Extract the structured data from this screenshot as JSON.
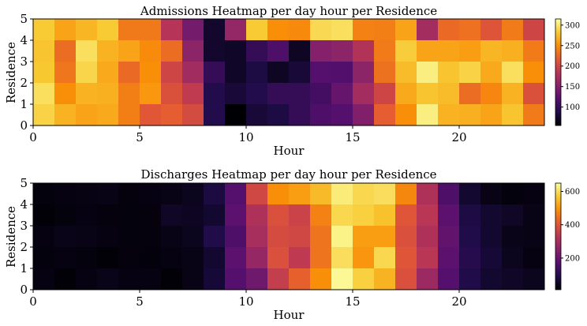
{
  "chart_data": [
    {
      "type": "heatmap",
      "title": "Admissions Heatmap per day hour per Residence",
      "xlabel": "Hour",
      "ylabel": "Residence",
      "x_range": [
        0,
        24
      ],
      "y_range": [
        0,
        5
      ],
      "x_ticks": [
        0,
        5,
        10,
        15,
        20
      ],
      "y_ticks": [
        0,
        1,
        2,
        3,
        4,
        5
      ],
      "colorbar_ticks": [
        100,
        150,
        200,
        250,
        300
      ],
      "vmin": 55,
      "vmax": 315,
      "colormap": "inferno",
      "rows_top_to_bottom": [
        [
          283,
          262,
          272,
          283,
          237,
          237,
          182,
          140,
          75,
          160,
          283,
          250,
          247,
          292,
          295,
          242,
          240,
          262,
          170,
          228,
          232,
          213,
          238,
          200
        ],
        [
          280,
          230,
          295,
          270,
          262,
          248,
          230,
          155,
          75,
          72,
          100,
          115,
          70,
          150,
          155,
          180,
          238,
          285,
          262,
          262,
          258,
          272,
          268,
          238
        ],
        [
          282,
          235,
          290,
          265,
          228,
          250,
          200,
          168,
          100,
          72,
          85,
          70,
          80,
          120,
          118,
          155,
          233,
          275,
          305,
          280,
          288,
          265,
          295,
          250
        ],
        [
          295,
          250,
          270,
          268,
          240,
          255,
          210,
          190,
          90,
          80,
          90,
          100,
          100,
          110,
          130,
          170,
          200,
          265,
          280,
          275,
          230,
          245,
          270,
          210
        ],
        [
          288,
          270,
          262,
          265,
          240,
          215,
          220,
          205,
          90,
          55,
          80,
          85,
          100,
          115,
          120,
          148,
          220,
          250,
          305,
          270,
          268,
          262,
          280,
          238
        ]
      ]
    },
    {
      "type": "heatmap",
      "title": "Discharges Heatmap per day hour per Residence",
      "xlabel": "Hour",
      "ylabel": "Residence",
      "x_range": [
        0,
        24
      ],
      "y_range": [
        0,
        5
      ],
      "x_ticks": [
        0,
        5,
        10,
        15,
        20
      ],
      "y_ticks": [
        0,
        1,
        2,
        3,
        4,
        5
      ],
      "colorbar_ticks": [
        200,
        400,
        600
      ],
      "vmin": 10,
      "vmax": 650,
      "colormap": "inferno",
      "rows_top_to_bottom": [
        [
          20,
          25,
          28,
          30,
          22,
          25,
          30,
          40,
          80,
          170,
          370,
          490,
          510,
          550,
          620,
          590,
          600,
          480,
          310,
          160,
          60,
          30,
          20,
          25
        ],
        [
          15,
          20,
          25,
          22,
          20,
          22,
          50,
          45,
          60,
          180,
          310,
          390,
          360,
          470,
          590,
          580,
          560,
          400,
          330,
          180,
          85,
          60,
          50,
          30
        ],
        [
          25,
          35,
          30,
          25,
          20,
          22,
          30,
          40,
          90,
          160,
          300,
          380,
          370,
          450,
          630,
          510,
          510,
          390,
          310,
          190,
          90,
          60,
          35,
          30
        ],
        [
          20,
          25,
          20,
          15,
          22,
          18,
          25,
          30,
          60,
          180,
          270,
          390,
          340,
          450,
          600,
          500,
          590,
          400,
          330,
          180,
          100,
          70,
          40,
          25
        ],
        [
          25,
          15,
          25,
          35,
          25,
          25,
          15,
          30,
          70,
          170,
          210,
          350,
          420,
          490,
          640,
          580,
          540,
          390,
          280,
          170,
          90,
          60,
          50,
          40
        ]
      ]
    }
  ]
}
